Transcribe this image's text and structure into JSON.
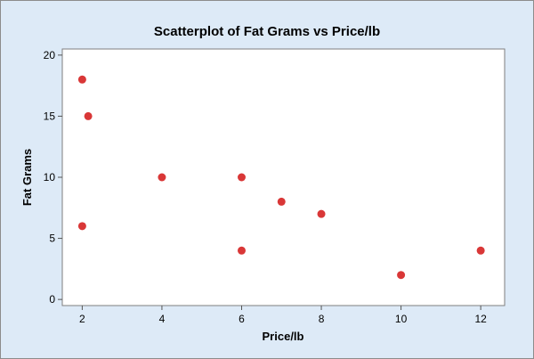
{
  "chart_data": {
    "type": "scatter",
    "title": "Scatterplot of Fat Grams vs Price/lb",
    "xlabel": "Price/lb",
    "ylabel": "Fat Grams",
    "xlim": [
      1.5,
      12.6
    ],
    "ylim": [
      -0.5,
      20.5
    ],
    "xticks": [
      "2",
      "4",
      "6",
      "8",
      "10",
      "12"
    ],
    "yticks": [
      "0",
      "5",
      "10",
      "15",
      "20"
    ],
    "grid": false,
    "point_color": "#d93737",
    "points": [
      {
        "x": 2,
        "y": 18
      },
      {
        "x": 2.15,
        "y": 15
      },
      {
        "x": 2,
        "y": 6
      },
      {
        "x": 4,
        "y": 10
      },
      {
        "x": 6,
        "y": 10
      },
      {
        "x": 6,
        "y": 4
      },
      {
        "x": 7,
        "y": 8
      },
      {
        "x": 8,
        "y": 7
      },
      {
        "x": 10,
        "y": 2
      },
      {
        "x": 12,
        "y": 4
      }
    ]
  }
}
